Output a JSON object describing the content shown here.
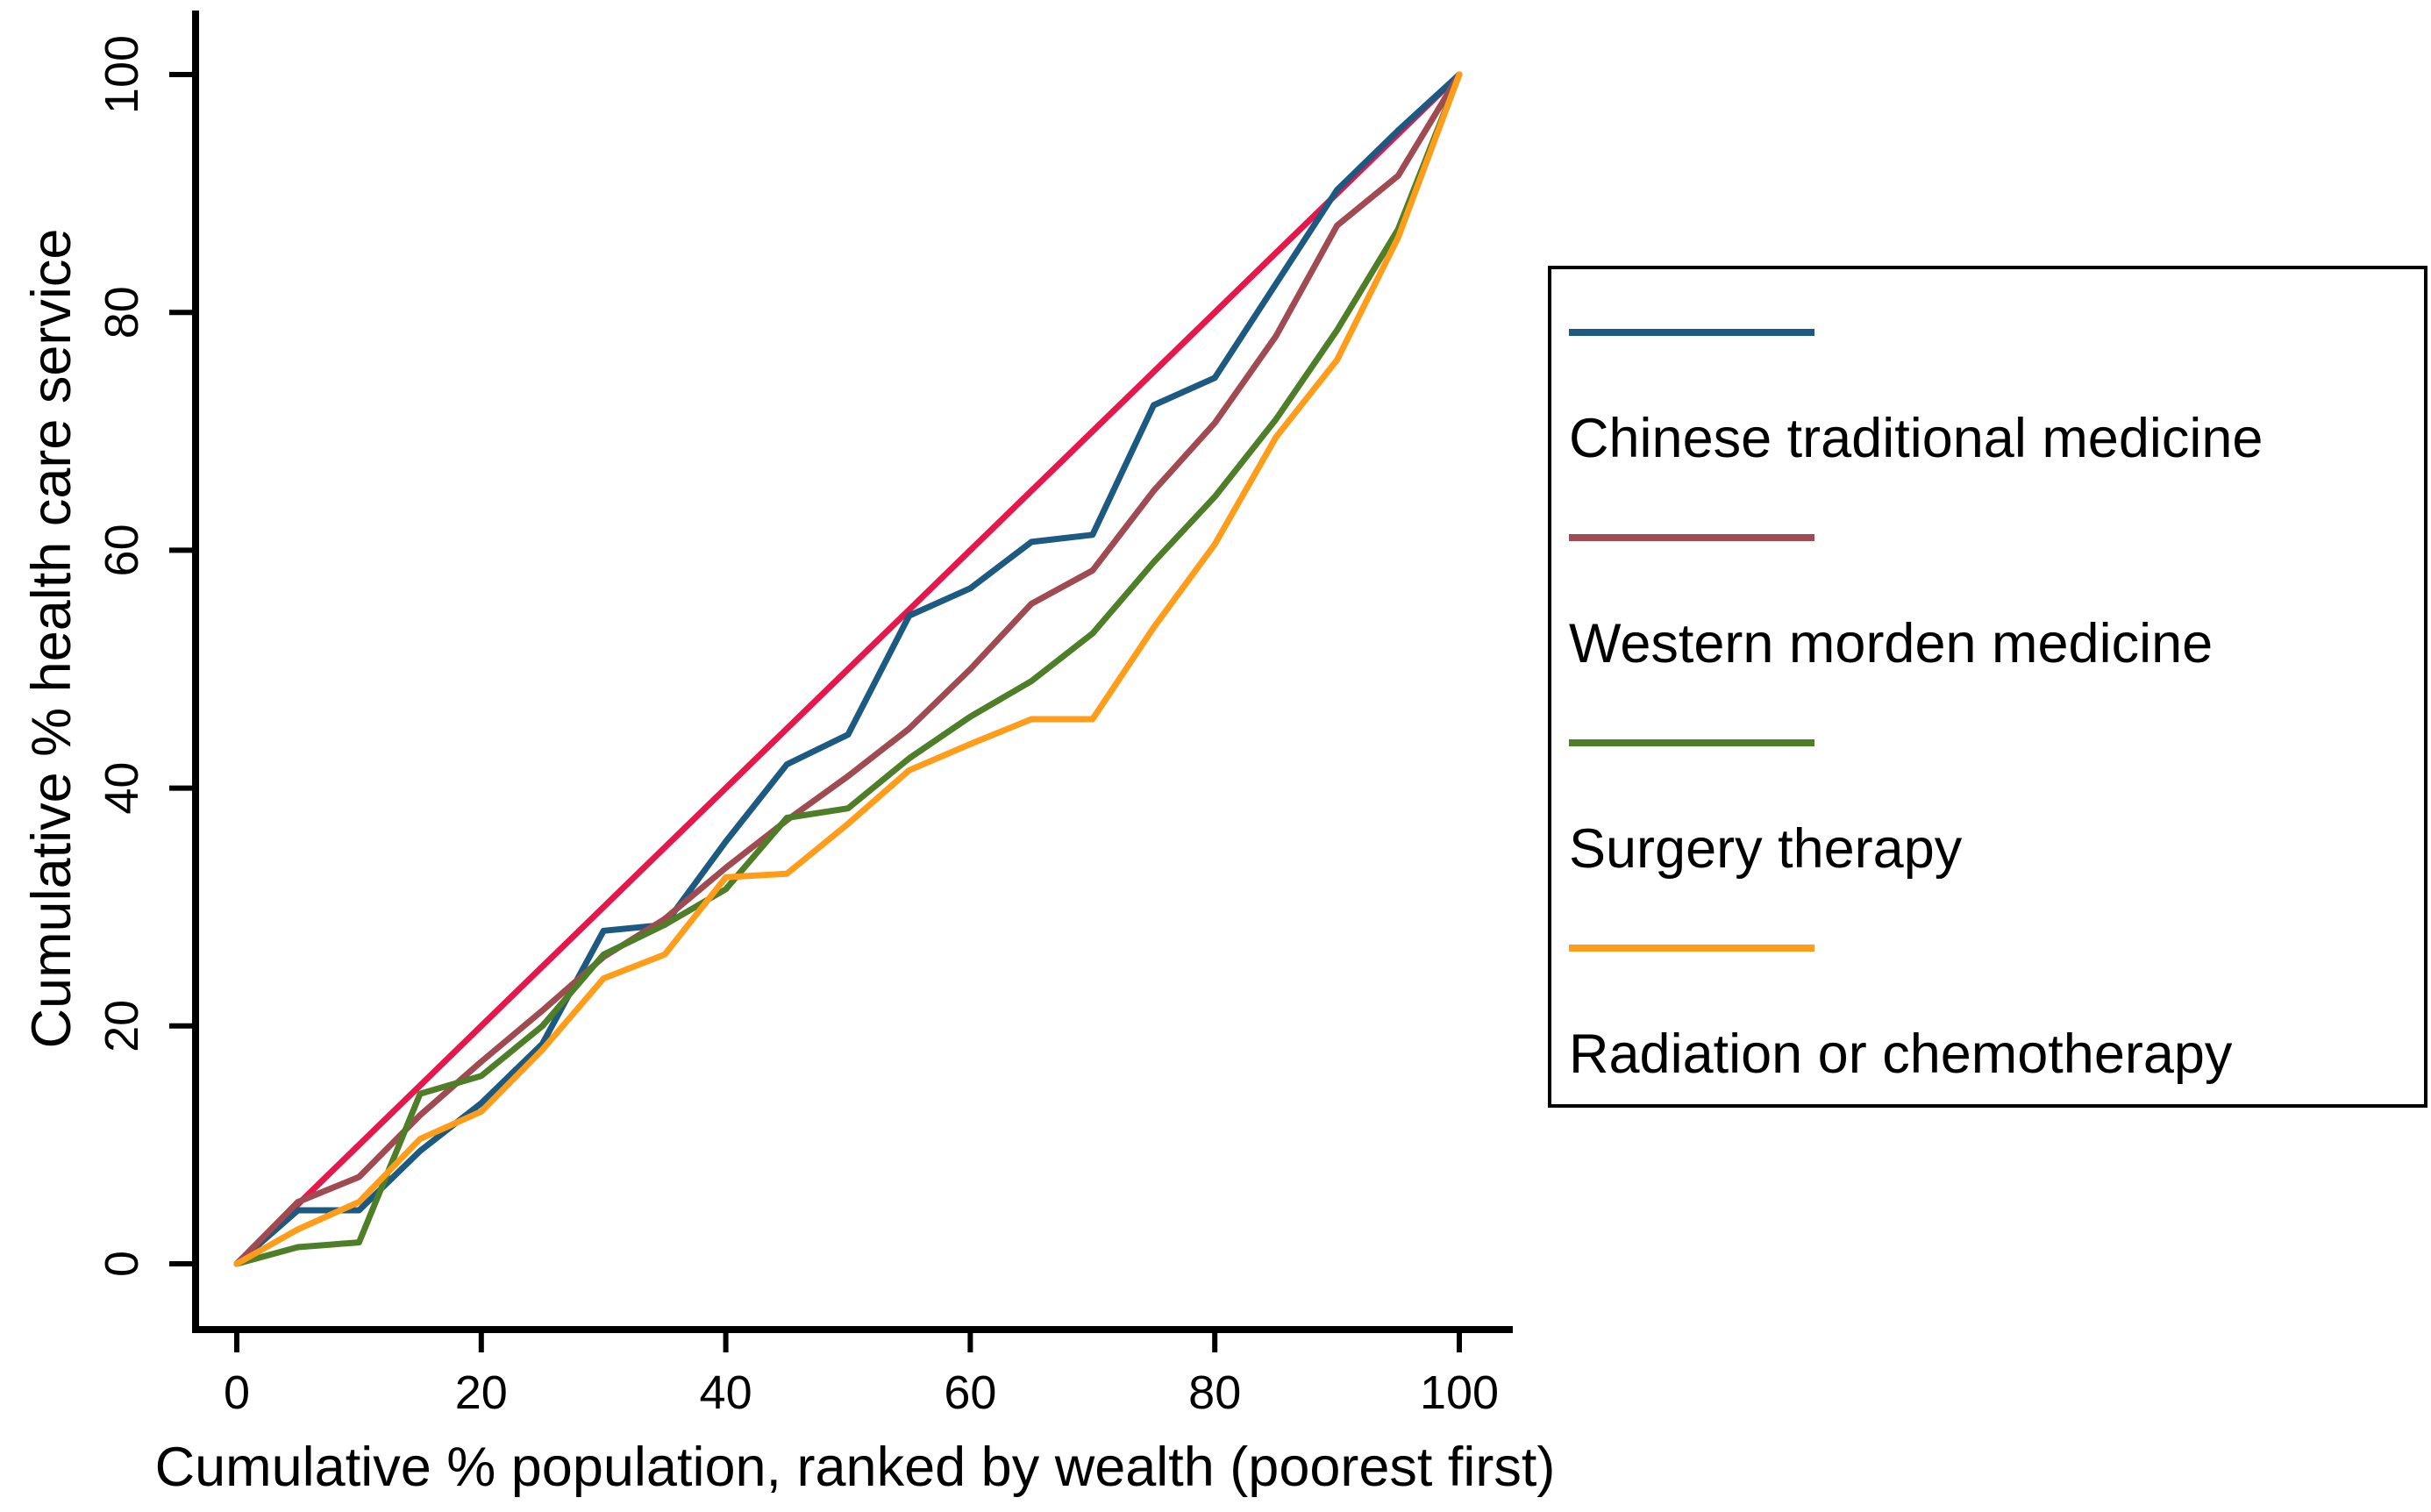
{
  "figure": {
    "xlabel": "Cumulative % population, ranked by wealth (poorest first)",
    "ylabel": "Cumulative % health care service"
  },
  "chart_data": {
    "type": "line",
    "title": "",
    "xlabel": "Cumulative % population, ranked by wealth (poorest first)",
    "ylabel": "Cumulative % health care service",
    "xlim": [
      0,
      100
    ],
    "ylim": [
      0,
      100
    ],
    "x_ticks": [
      0,
      20,
      40,
      60,
      80,
      100
    ],
    "y_ticks": [
      0,
      20,
      40,
      60,
      80,
      100
    ],
    "grid": false,
    "legend_position": "right-outside",
    "x": [
      0,
      5,
      10,
      15,
      20,
      25,
      30,
      35,
      40,
      45,
      50,
      55,
      60,
      65,
      70,
      75,
      80,
      85,
      90,
      95,
      100
    ],
    "series": [
      {
        "name": "Line of equality",
        "color": "#e5174b",
        "in_legend": false,
        "values": [
          0,
          5,
          10,
          15,
          20,
          25,
          30,
          35,
          40,
          45,
          50,
          55,
          60,
          65,
          70,
          75,
          80,
          85,
          90,
          95,
          100
        ]
      },
      {
        "name": "Chinese traditional medicine",
        "color": "#1d5a82",
        "in_legend": true,
        "values": [
          0,
          4.5,
          4.5,
          9.5,
          13.5,
          18.5,
          28,
          28.5,
          35.5,
          42,
          44.5,
          54.5,
          56.8,
          60.7,
          61.3,
          72.2,
          74.5,
          82.4,
          90.3,
          95.3,
          100
        ]
      },
      {
        "name": "Western morden medicine",
        "color": "#a04b52",
        "in_legend": true,
        "values": [
          0,
          5.2,
          7.3,
          12.5,
          17,
          21.3,
          25.8,
          29,
          33.3,
          37.3,
          41,
          45,
          50,
          55.5,
          58.3,
          65,
          70.7,
          78,
          87.3,
          91.5,
          100
        ]
      },
      {
        "name": "Surgery therapy",
        "color": "#4e7e27",
        "in_legend": true,
        "values": [
          0,
          1.4,
          1.8,
          14.3,
          15.8,
          20,
          26,
          28.5,
          31.5,
          37.5,
          38.3,
          42.5,
          46,
          49,
          53,
          59,
          64.5,
          71,
          78.5,
          87,
          100
        ]
      },
      {
        "name": "Radiation or chemotherapy",
        "color": "#ff9d1b",
        "in_legend": true,
        "values": [
          0,
          2.9,
          5.2,
          10.5,
          12.8,
          18,
          24,
          26,
          32.5,
          32.8,
          37,
          41.5,
          43.7,
          45.8,
          45.8,
          53.5,
          60.5,
          69.5,
          76,
          86.3,
          100
        ]
      }
    ]
  }
}
